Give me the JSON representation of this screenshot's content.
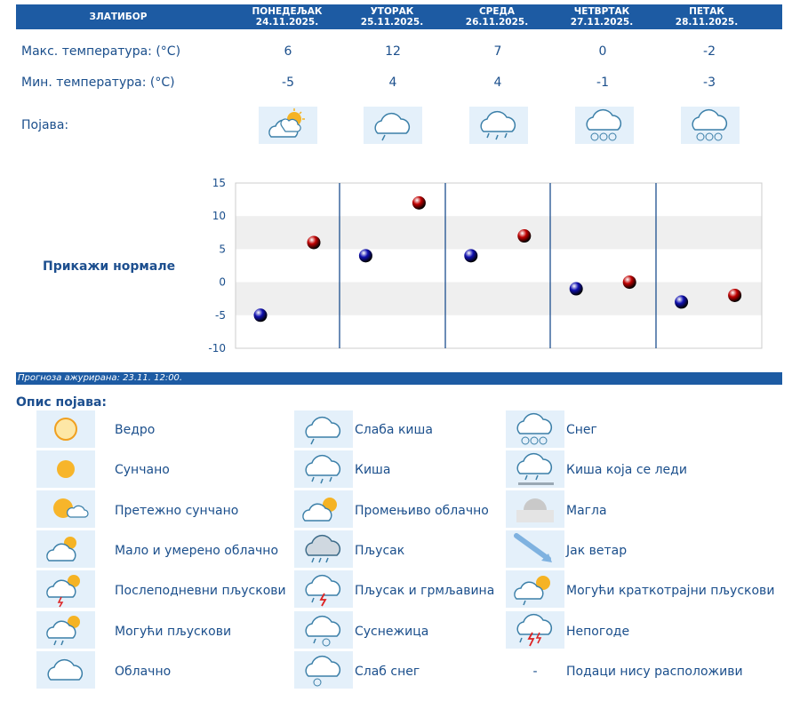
{
  "location": "ЗЛАТИБОР",
  "days": [
    {
      "name": "ПОНЕДЕЉАК",
      "date": "24.11.2025.",
      "max": "6",
      "min": "-5",
      "icon": "partly-cloudy-sun-icon"
    },
    {
      "name": "УТОРАК",
      "date": "25.11.2025.",
      "max": "12",
      "min": "4",
      "icon": "light-rain-icon"
    },
    {
      "name": "СРЕДА",
      "date": "26.11.2025.",
      "max": "7",
      "min": "4",
      "icon": "rain-icon"
    },
    {
      "name": "ЧЕТВРТАК",
      "date": "27.11.2025.",
      "max": "0",
      "min": "-1",
      "icon": "snow-icon"
    },
    {
      "name": "ПЕТАК",
      "date": "28.11.2025.",
      "max": "-2",
      "min": "-3",
      "icon": "snow-icon"
    }
  ],
  "labels": {
    "max_temp": "Макс. температура: (°C)",
    "min_temp": "Мин. температура: (°C)",
    "phenomenon": "Појава:",
    "show_normals": "Прикажи нормале",
    "updated": "Прогноза ажурирана:  23.11. 12:00.",
    "legend_title": "Опис појава:"
  },
  "chart_data": {
    "type": "scatter",
    "y_ticks": [
      "15",
      "10",
      "5",
      "0",
      "-5",
      "-10"
    ],
    "ylim": [
      -10,
      15
    ],
    "series": [
      {
        "color": "#c00000",
        "values": [
          6,
          12,
          7,
          0,
          -2
        ]
      },
      {
        "color": "#1010b0",
        "values": [
          -5,
          4,
          4,
          -1,
          -3
        ]
      }
    ]
  },
  "legend": [
    {
      "icon": "clear-sun-icon",
      "label": "Ведро"
    },
    {
      "icon": "light-rain-icon",
      "label": "Слаба киша"
    },
    {
      "icon": "snow-icon",
      "label": "Снег"
    },
    {
      "icon": "sunny-icon",
      "label": "Сунчано"
    },
    {
      "icon": "rain-icon",
      "label": "Киша"
    },
    {
      "icon": "freezing-rain-icon",
      "label": "Киша која се леди"
    },
    {
      "icon": "mostly-sunny-icon",
      "label": "Претежно сунчано"
    },
    {
      "icon": "variable-cloudy-icon",
      "label": "Промењиво облачно"
    },
    {
      "icon": "fog-icon",
      "label": "Магла"
    },
    {
      "icon": "partly-cloudy-icon",
      "label": "Мало и умерено облачно"
    },
    {
      "icon": "showers-icon",
      "label": "Пљусак"
    },
    {
      "icon": "strong-wind-icon",
      "label": "Јак ветар"
    },
    {
      "icon": "afternoon-showers-icon",
      "label": "Послеподневни пљускови"
    },
    {
      "icon": "thunderstorm-icon",
      "label": "Пљусак и грмљавина"
    },
    {
      "icon": "brief-showers-icon",
      "label": "Могући краткотрајни пљускови"
    },
    {
      "icon": "possible-showers-icon",
      "label": "Могући пљускови"
    },
    {
      "icon": "sleet-icon",
      "label": "Суснежица"
    },
    {
      "icon": "storm-icon",
      "label": "Непогоде"
    },
    {
      "icon": "cloudy-icon",
      "label": "Облачно"
    },
    {
      "icon": "light-snow-icon",
      "label": "Слаб снег"
    },
    {
      "icon": "",
      "label": "Подаци нису расположиви",
      "dash": "-"
    }
  ],
  "colors": {
    "header": "#1d5ba3",
    "text": "#1b4f8c",
    "icon_bg": "#e4f0fa",
    "max_dot": "#c00000",
    "min_dot": "#1010b0"
  }
}
